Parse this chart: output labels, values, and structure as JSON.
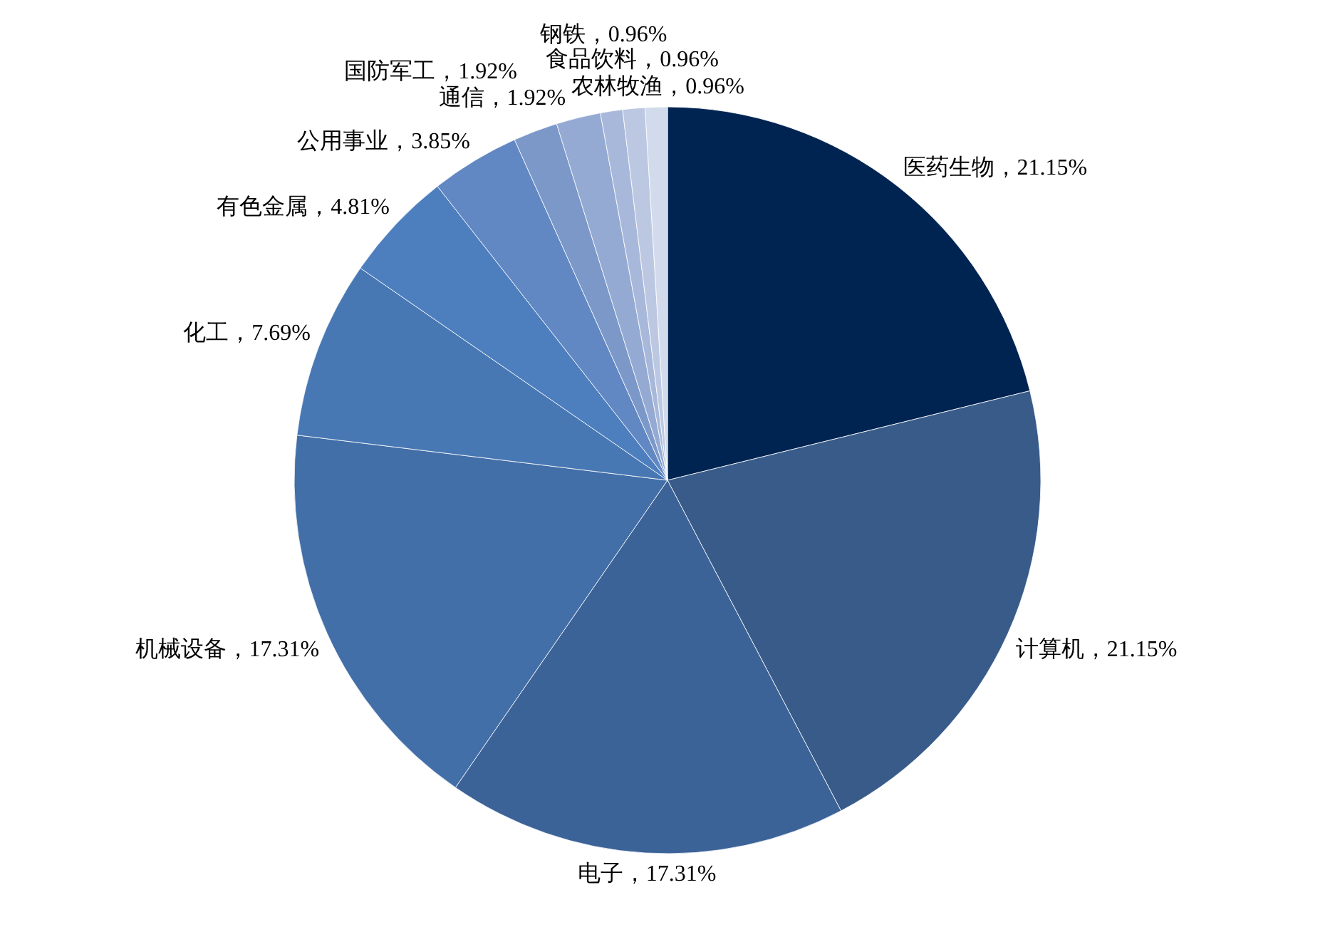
{
  "chart_data": {
    "type": "pie",
    "categories": [
      "医药生物",
      "计算机",
      "电子",
      "机械设备",
      "化工",
      "有色金属",
      "公用事业",
      "国防军工",
      "通信",
      "钢铁",
      "食品饮料",
      "农林牧渔"
    ],
    "values": [
      21.15,
      21.15,
      17.31,
      17.31,
      7.69,
      4.81,
      3.85,
      1.92,
      1.92,
      0.96,
      0.96,
      0.96
    ],
    "colors": [
      "#002452",
      "#385b8a",
      "#3c6398",
      "#436fa8",
      "#4878b3",
      "#4d7fbf",
      "#6288c4",
      "#7b98c9",
      "#94aad3",
      "#a8b8da",
      "#bcc8e2",
      "#d2dbec"
    ],
    "value_labels": [
      "21.15%",
      "21.15%",
      "17.31%",
      "17.31%",
      "7.69%",
      "4.81%",
      "3.85%",
      "1.92%",
      "1.92%",
      "0.96%",
      "0.96%",
      "0.96%"
    ]
  }
}
